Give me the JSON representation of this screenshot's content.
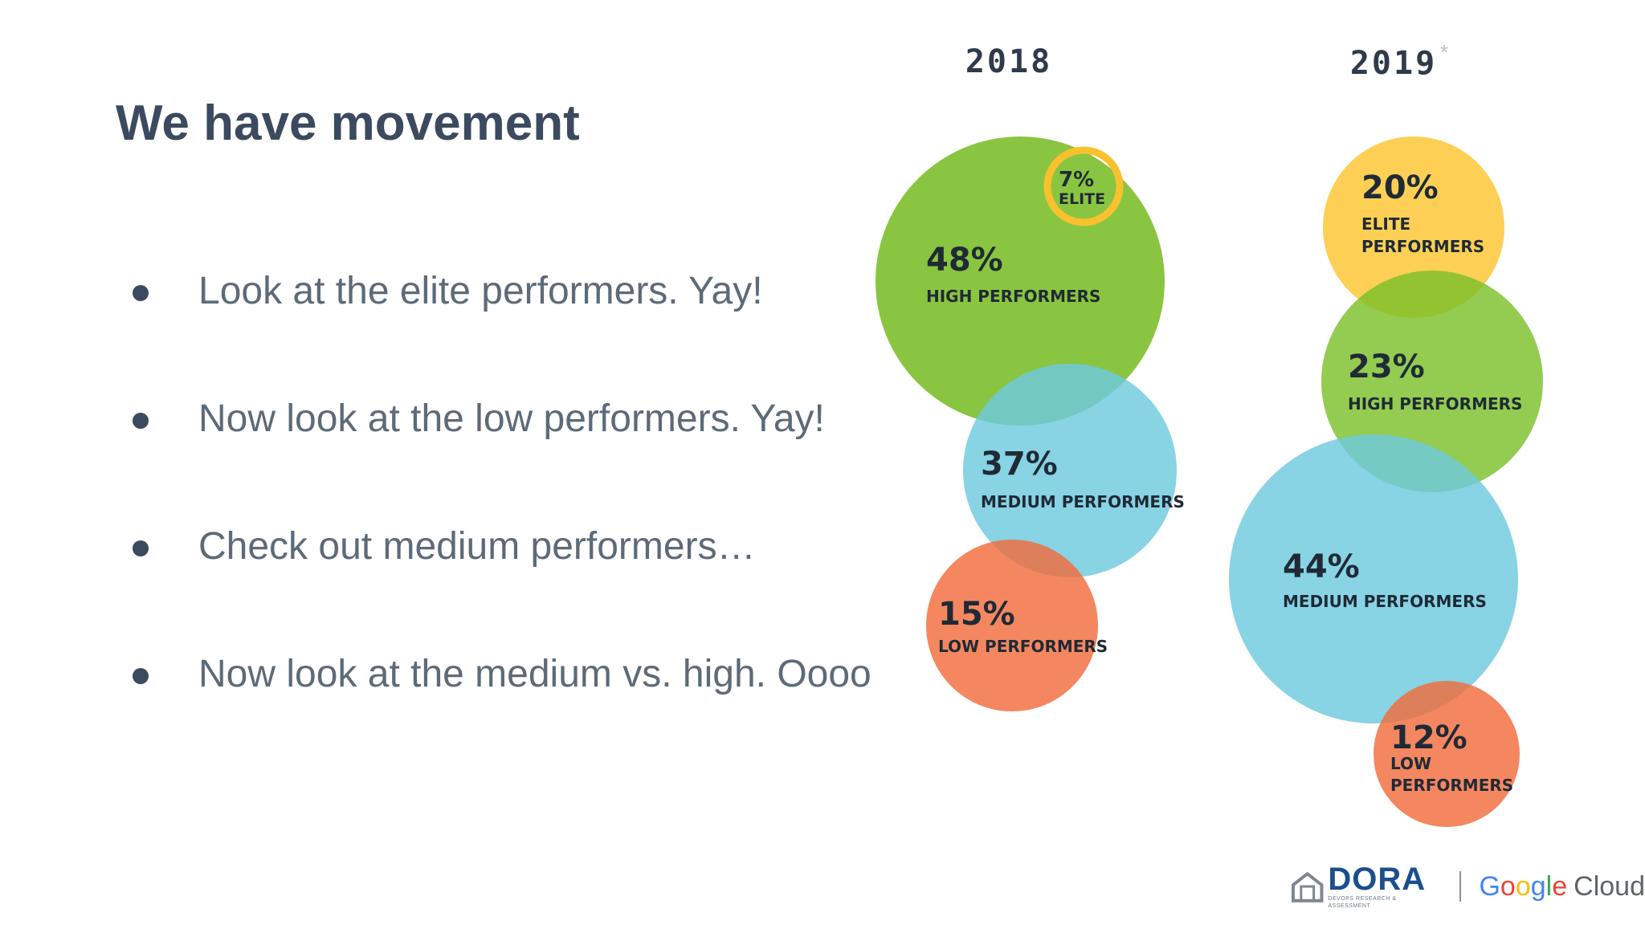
{
  "slide": {
    "title": "We have movement",
    "bullets": [
      "Look at the elite performers. Yay!",
      "Now look at the low performers. Yay!",
      "Check out medium performers…",
      "Now look at the medium vs. high. Oooo"
    ]
  },
  "chart_data": {
    "type": "bubble",
    "title": "",
    "columns": [
      {
        "year": "2018",
        "year_mark": "",
        "series": [
          {
            "category": "ELITE",
            "value": 7,
            "value_label": "7%",
            "color": "#f9c12e",
            "style": "ring"
          },
          {
            "category": "HIGH PERFORMERS",
            "value": 48,
            "value_label": "48%",
            "color": "#7cbf2b",
            "style": "fill"
          },
          {
            "category": "MEDIUM PERFORMERS",
            "value": 37,
            "value_label": "37%",
            "color": "#6ec9de",
            "style": "fill"
          },
          {
            "category": "LOW PERFORMERS",
            "value": 15,
            "value_label": "15%",
            "color": "#f26c3d",
            "style": "fill"
          }
        ]
      },
      {
        "year": "2019",
        "year_mark": "*",
        "series": [
          {
            "category": "ELITE PERFORMERS",
            "value": 20,
            "value_label": "20%",
            "color": "#fcc62f",
            "style": "fill"
          },
          {
            "category": "HIGH PERFORMERS",
            "value": 23,
            "value_label": "23%",
            "color": "#7cbf2b",
            "style": "fill"
          },
          {
            "category": "MEDIUM PERFORMERS",
            "value": 44,
            "value_label": "44%",
            "color": "#6ec9de",
            "style": "fill"
          },
          {
            "category": "LOW PERFORMERS",
            "value": 12,
            "value_label": "12%",
            "color": "#f26c3d",
            "style": "fill"
          }
        ]
      }
    ]
  },
  "branding": {
    "dora_name": "DORA",
    "dora_tagline": "DEVOPS RESEARCH & ASSESSMENT",
    "google": "Google",
    "cloud": "Cloud",
    "google_colors": [
      "#4285f4",
      "#ea4335",
      "#fbbc05",
      "#4285f4",
      "#34a853",
      "#ea4335"
    ]
  }
}
